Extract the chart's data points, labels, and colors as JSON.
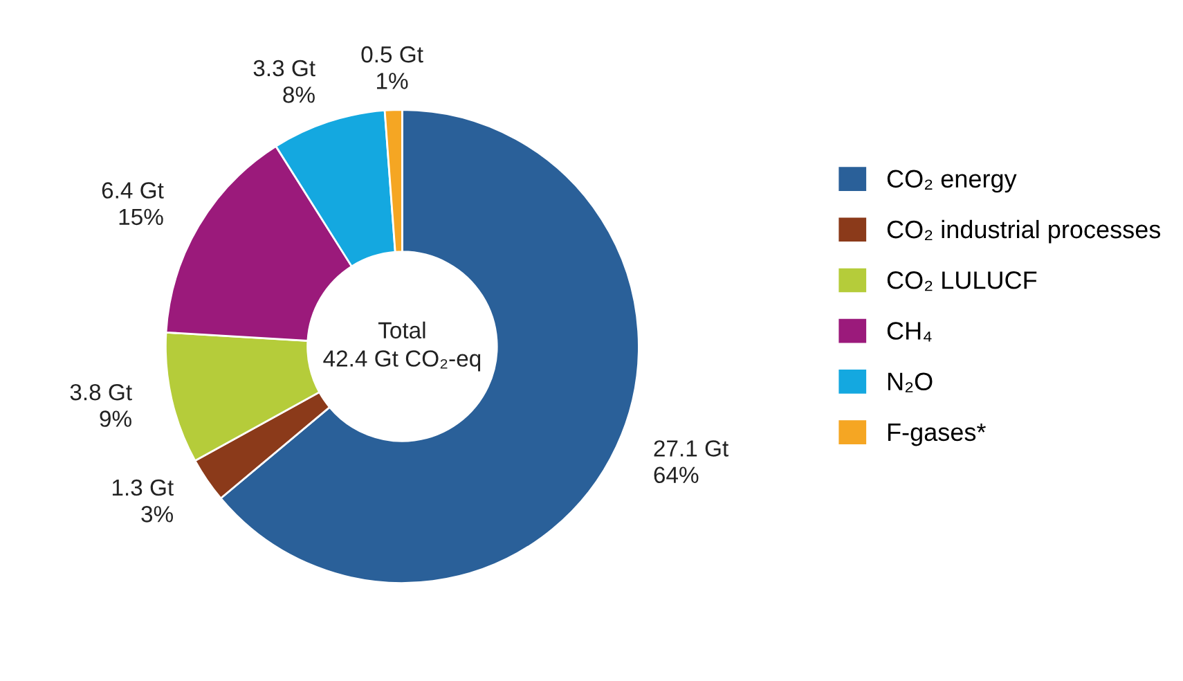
{
  "chart_data": {
    "type": "donut",
    "categories": [
      "CO₂ energy",
      "CO₂ industrial processes",
      "CO₂ LULUCF",
      "CH₄",
      "N₂O",
      "F-gases*"
    ],
    "values": [
      27.1,
      1.3,
      3.8,
      6.4,
      3.3,
      0.5
    ],
    "colors": [
      "#2a6099",
      "#8b3a1a",
      "#b5cc3a",
      "#9b1a7b",
      "#14a8e0",
      "#f5a623"
    ],
    "value_labels": [
      "27.1 Gt\n64%",
      "1.3 Gt\n3%",
      "3.8 Gt\n9%",
      "6.4 Gt\n15%",
      "3.3 Gt\n8%",
      "0.5 Gt\n1%"
    ],
    "annotations": [
      "Total\n42.4 Gt CO₂-eq"
    ],
    "legend": "right"
  }
}
